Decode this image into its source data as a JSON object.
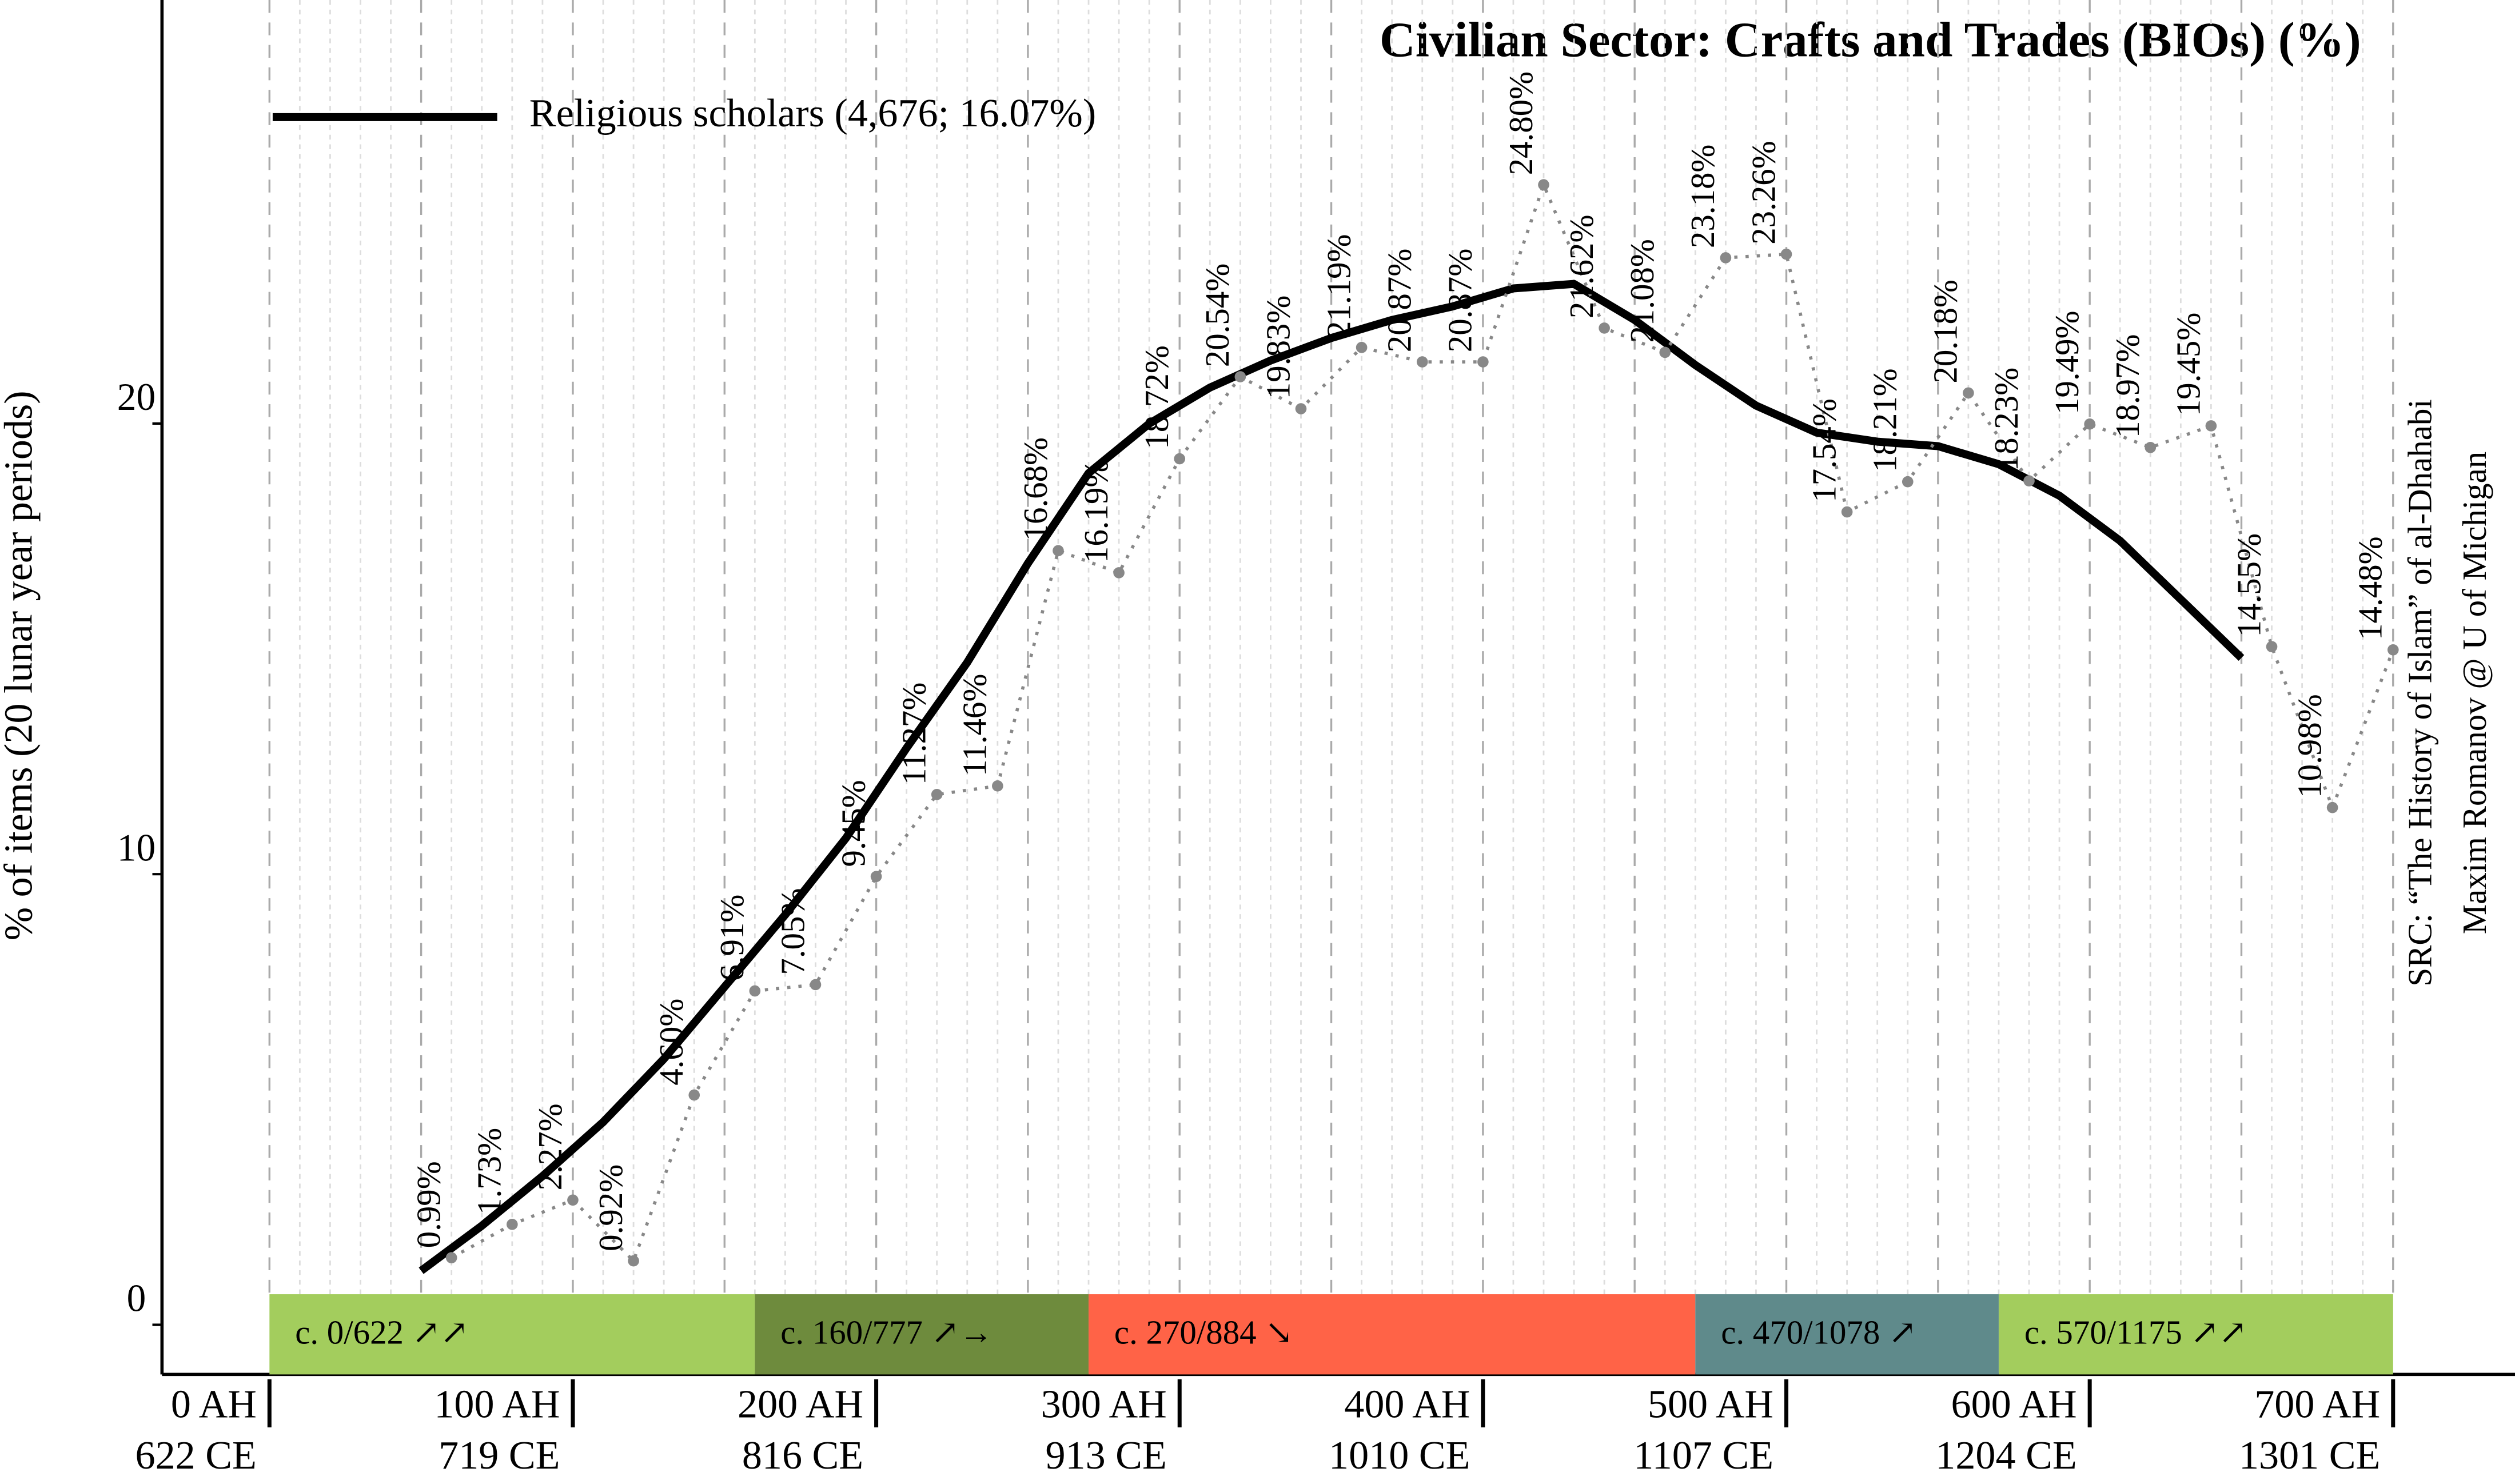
{
  "chart_data": {
    "type": "line",
    "title": "Civilian Sector: Crafts and Trades (BIOs) (%)",
    "ylabel": "% of items (20 lunar year periods)",
    "source": [
      "SRC: “The History of Islam” of al-Dhahabi",
      "Maxim Romanov @ U of Michigan"
    ],
    "xlim": [
      0,
      700
    ],
    "ylim": [
      -1.6,
      28.9
    ],
    "xticks": [
      {
        "value": 0,
        "label": "0 AH"
      },
      {
        "value": 100,
        "label": "100 AH"
      },
      {
        "value": 200,
        "label": "200 AH"
      },
      {
        "value": 300,
        "label": "300 AH"
      },
      {
        "value": 400,
        "label": "400 AH"
      },
      {
        "value": 500,
        "label": "500 AH"
      },
      {
        "value": 600,
        "label": "600 AH"
      },
      {
        "value": 700,
        "label": "700 AH"
      }
    ],
    "xticks_ce": [
      "622 CE",
      "719 CE",
      "816 CE",
      "913 CE",
      "1010 CE",
      "1107 CE",
      "1204 CE",
      "1301 CE"
    ],
    "yticks": [
      0,
      10,
      20
    ],
    "x_major_gridlines": [
      0,
      50,
      100,
      150,
      200,
      250,
      300,
      350,
      400,
      450,
      500,
      550,
      600,
      650,
      700
    ],
    "x_minor_gridlines": [
      10,
      20,
      30,
      40,
      60,
      70,
      80,
      90,
      110,
      120,
      130,
      140,
      160,
      170,
      180,
      190,
      210,
      220,
      230,
      240,
      260,
      270,
      280,
      290,
      310,
      320,
      330,
      340,
      360,
      370,
      380,
      390,
      410,
      420,
      430,
      440,
      460,
      470,
      480,
      490,
      510,
      520,
      530,
      540,
      560,
      570,
      580,
      590,
      610,
      620,
      630,
      640,
      660,
      670,
      680,
      690
    ],
    "legend_position": "upper left",
    "series": [
      {
        "name": "Religious scholars (4,676; 16.07%)",
        "color": "#000000",
        "style": "solid",
        "x": [
          50,
          70,
          90,
          110,
          130,
          150,
          170,
          190,
          210,
          230,
          250,
          270,
          290,
          310,
          330,
          350,
          370,
          390,
          410,
          430,
          450,
          470,
          490,
          510,
          530,
          550,
          570,
          590,
          610,
          630,
          650
        ],
        "values": [
          0.7,
          1.7,
          2.8,
          4.0,
          5.4,
          7.0,
          8.6,
          10.3,
          12.3,
          14.2,
          16.4,
          18.4,
          19.5,
          20.3,
          20.9,
          21.4,
          21.8,
          22.1,
          22.5,
          22.6,
          21.8,
          20.8,
          19.9,
          19.3,
          19.1,
          19.0,
          18.6,
          17.9,
          16.9,
          15.6,
          14.3
        ]
      },
      {
        "color": "#888888",
        "style": "dotted",
        "x": [
          60,
          80,
          100,
          120,
          140,
          160,
          180,
          200,
          220,
          240,
          260,
          280,
          300,
          320,
          340,
          360,
          380,
          400,
          420,
          440,
          460,
          480,
          500,
          520,
          540,
          560,
          580,
          600,
          620,
          640,
          660,
          680,
          700
        ],
        "values": [
          0.99,
          1.73,
          2.27,
          0.92,
          4.6,
          6.91,
          7.05,
          9.45,
          11.27,
          11.46,
          16.68,
          16.19,
          18.72,
          20.54,
          19.83,
          21.19,
          20.87,
          20.87,
          24.8,
          21.62,
          21.08,
          23.18,
          23.26,
          17.54,
          18.21,
          20.18,
          18.23,
          19.49,
          18.97,
          19.45,
          14.55,
          10.98,
          14.48
        ],
        "value_labels": [
          "0.99%",
          "1.73%",
          "2.27%",
          "0.92%",
          "4.60%",
          "6.91%",
          "7.05%",
          "9.45%",
          "11.27%",
          "11.46%",
          "16.68%",
          "16.19%",
          "18.72%",
          "20.54%",
          "19.83%",
          "21.19%",
          "20.87%",
          "20.87%",
          "24.80%",
          "21.62%",
          "21.08%",
          "23.18%",
          "23.26%",
          "17.54%",
          "18.21%",
          "20.18%",
          "18.23%",
          "19.49%",
          "18.97%",
          "19.45%",
          "14.55%",
          "10.98%",
          "14.48%"
        ]
      }
    ],
    "periods": [
      {
        "start": 0,
        "end": 160,
        "label": "c. 0/622 ↗↗",
        "color": "#a3cd5d"
      },
      {
        "start": 160,
        "end": 270,
        "label": "c. 160/777 ↗→",
        "color": "#6e8b3d"
      },
      {
        "start": 270,
        "end": 470,
        "label": "c. 270/884 ↘",
        "color": "#ff6347"
      },
      {
        "start": 470,
        "end": 570,
        "label": "c. 470/1078 ↗",
        "color": "#5f8a8b"
      },
      {
        "start": 570,
        "end": 700,
        "label": "c. 570/1175 ↗↗",
        "color": "#a3cd5d"
      }
    ]
  }
}
